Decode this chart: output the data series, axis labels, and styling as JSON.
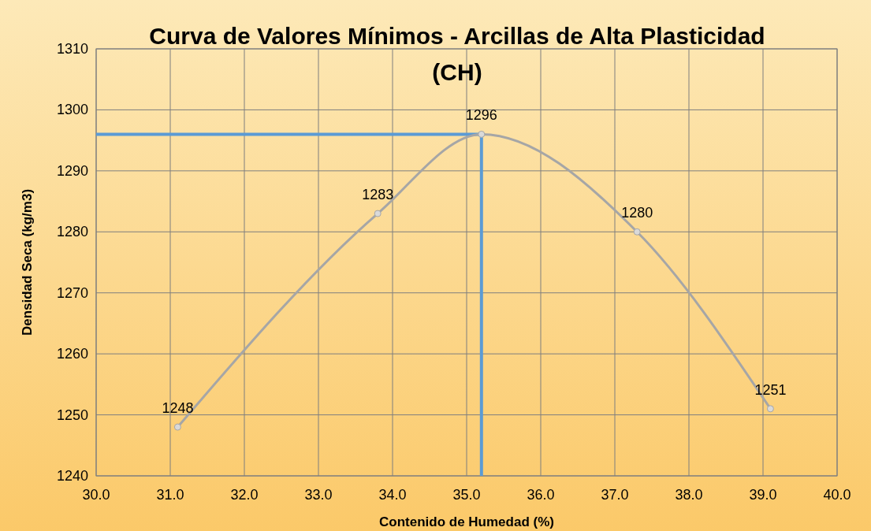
{
  "chart_data": {
    "type": "line",
    "title": "Curva de Valores Mínimos - Arcillas de Alta Plasticidad (CH)",
    "xlabel": "Contenido de Humedad (%)",
    "ylabel": "Densidad Seca (kg/m3)",
    "x": [
      31.1,
      33.8,
      35.2,
      37.3,
      39.1
    ],
    "series": [
      {
        "color": "#a6a6a6",
        "values": [
          1248,
          1283,
          1296,
          1280,
          1251
        ]
      }
    ],
    "xlim": [
      30,
      40
    ],
    "xticks": [
      {
        "value": 30,
        "label": "30.0"
      },
      {
        "value": 31,
        "label": "31.0"
      },
      {
        "value": 32,
        "label": "32.0"
      },
      {
        "value": 33,
        "label": "33.0"
      },
      {
        "value": 34,
        "label": "34.0"
      },
      {
        "value": 35,
        "label": "35.0"
      },
      {
        "value": 36,
        "label": "36.0"
      },
      {
        "value": 37,
        "label": "37.0"
      },
      {
        "value": 38,
        "label": "38.0"
      },
      {
        "value": 39,
        "label": "39.0"
      },
      {
        "value": 40,
        "label": "40.0"
      }
    ],
    "ylim": [
      1240,
      1310
    ],
    "yticks": [
      1240,
      1250,
      1260,
      1270,
      1280,
      1290,
      1300,
      1310
    ],
    "ref_lines": [
      {
        "axis": "y",
        "value": 1296,
        "color": "#5b9bd5"
      },
      {
        "axis": "x",
        "value": 35.2,
        "color": "#5b9bd5"
      }
    ],
    "grid": true,
    "marker": "circle",
    "line_style": "solid",
    "data_labels": true
  }
}
